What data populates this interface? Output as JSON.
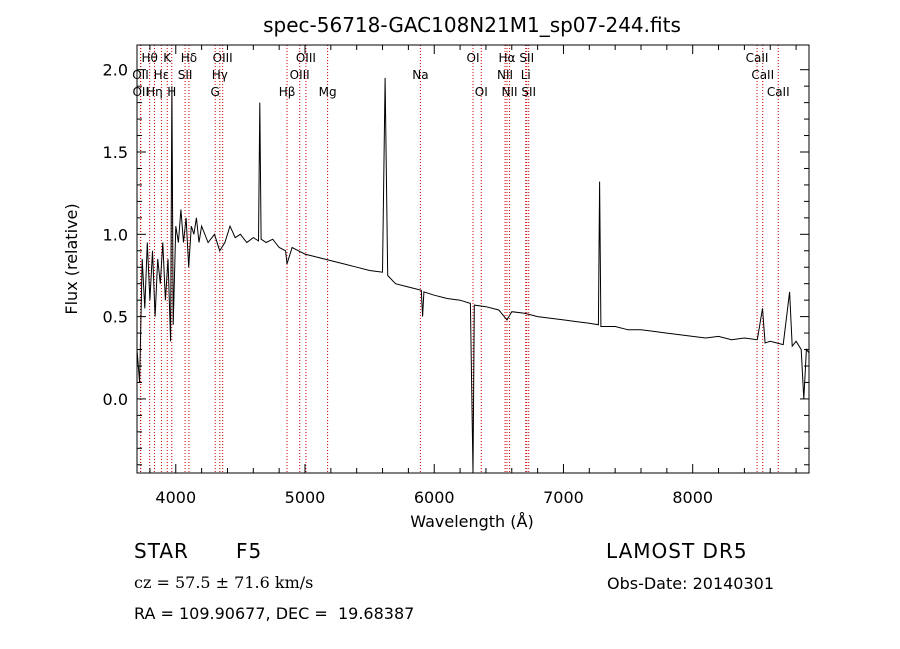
{
  "chart_data": {
    "type": "line",
    "title": "spec-56718-GAC108N21M1_sp07-244.fits",
    "xlabel": "Wavelength (Å)",
    "ylabel": "Flux (relative)",
    "xlim": [
      3700,
      8900
    ],
    "ylim": [
      -0.45,
      2.15
    ],
    "xticks": [
      4000,
      5000,
      6000,
      7000,
      8000
    ],
    "xtick_labels": [
      "4000",
      "5000",
      "6000",
      "7000",
      "8000"
    ],
    "yticks": [
      0.0,
      0.5,
      1.0,
      1.5,
      2.0
    ],
    "ytick_labels": [
      "0.0",
      "0.5",
      "1.0",
      "1.5",
      "2.0"
    ],
    "grid": false,
    "line_color": "#000000",
    "marker_color": "#cc0000",
    "spectrum_points": [
      [
        3700,
        0.3
      ],
      [
        3720,
        0.1
      ],
      [
        3740,
        0.85
      ],
      [
        3760,
        0.55
      ],
      [
        3780,
        0.95
      ],
      [
        3800,
        0.6
      ],
      [
        3820,
        0.9
      ],
      [
        3840,
        0.5
      ],
      [
        3860,
        0.85
      ],
      [
        3880,
        0.7
      ],
      [
        3900,
        0.95
      ],
      [
        3920,
        0.6
      ],
      [
        3940,
        0.85
      ],
      [
        3960,
        0.35
      ],
      [
        3970,
        1.9
      ],
      [
        3980,
        0.45
      ],
      [
        4000,
        1.05
      ],
      [
        4020,
        0.95
      ],
      [
        4040,
        1.15
      ],
      [
        4060,
        0.95
      ],
      [
        4080,
        1.1
      ],
      [
        4100,
        0.8
      ],
      [
        4120,
        1.05
      ],
      [
        4140,
        1.0
      ],
      [
        4160,
        1.1
      ],
      [
        4180,
        0.95
      ],
      [
        4200,
        1.05
      ],
      [
        4250,
        0.95
      ],
      [
        4300,
        1.0
      ],
      [
        4340,
        0.9
      ],
      [
        4380,
        0.95
      ],
      [
        4420,
        1.05
      ],
      [
        4460,
        0.98
      ],
      [
        4500,
        1.0
      ],
      [
        4550,
        0.95
      ],
      [
        4600,
        0.98
      ],
      [
        4640,
        0.96
      ],
      [
        4650,
        1.8
      ],
      [
        4660,
        0.97
      ],
      [
        4700,
        0.95
      ],
      [
        4750,
        0.97
      ],
      [
        4800,
        0.92
      ],
      [
        4850,
        0.9
      ],
      [
        4861,
        0.82
      ],
      [
        4900,
        0.92
      ],
      [
        4950,
        0.9
      ],
      [
        5000,
        0.88
      ],
      [
        5100,
        0.86
      ],
      [
        5200,
        0.84
      ],
      [
        5300,
        0.82
      ],
      [
        5400,
        0.8
      ],
      [
        5500,
        0.78
      ],
      [
        5600,
        0.77
      ],
      [
        5620,
        1.95
      ],
      [
        5640,
        0.75
      ],
      [
        5700,
        0.7
      ],
      [
        5800,
        0.68
      ],
      [
        5900,
        0.66
      ],
      [
        5910,
        0.5
      ],
      [
        5920,
        0.65
      ],
      [
        6000,
        0.63
      ],
      [
        6100,
        0.61
      ],
      [
        6200,
        0.6
      ],
      [
        6280,
        0.58
      ],
      [
        6300,
        -0.45
      ],
      [
        6310,
        0.57
      ],
      [
        6400,
        0.56
      ],
      [
        6500,
        0.54
      ],
      [
        6563,
        0.48
      ],
      [
        6600,
        0.53
      ],
      [
        6700,
        0.52
      ],
      [
        6800,
        0.5
      ],
      [
        6900,
        0.49
      ],
      [
        7000,
        0.48
      ],
      [
        7100,
        0.47
      ],
      [
        7200,
        0.46
      ],
      [
        7270,
        0.45
      ],
      [
        7280,
        1.32
      ],
      [
        7290,
        0.44
      ],
      [
        7400,
        0.44
      ],
      [
        7500,
        0.42
      ],
      [
        7600,
        0.42
      ],
      [
        7700,
        0.41
      ],
      [
        7800,
        0.4
      ],
      [
        7900,
        0.39
      ],
      [
        8000,
        0.38
      ],
      [
        8100,
        0.37
      ],
      [
        8200,
        0.38
      ],
      [
        8300,
        0.36
      ],
      [
        8400,
        0.37
      ],
      [
        8500,
        0.36
      ],
      [
        8540,
        0.55
      ],
      [
        8560,
        0.34
      ],
      [
        8600,
        0.35
      ],
      [
        8700,
        0.33
      ],
      [
        8750,
        0.65
      ],
      [
        8770,
        0.32
      ],
      [
        8800,
        0.35
      ],
      [
        8840,
        0.3
      ],
      [
        8860,
        0.0
      ],
      [
        8880,
        0.3
      ],
      [
        8900,
        0.28
      ]
    ],
    "line_markers": [
      {
        "label": "Hθ",
        "wavelength": 3798,
        "row": 0
      },
      {
        "label": "OII",
        "wavelength": 3727,
        "row": 1
      },
      {
        "label": "OII",
        "wavelength": 3729,
        "row": 2
      },
      {
        "label": "Hη",
        "wavelength": 3835,
        "row": 2
      },
      {
        "label": "Hε",
        "wavelength": 3889,
        "row": 1
      },
      {
        "label": "K",
        "wavelength": 3934,
        "row": 0
      },
      {
        "label": "H",
        "wavelength": 3969,
        "row": 2
      },
      {
        "label": "Hδ",
        "wavelength": 4102,
        "row": 0
      },
      {
        "label": "SII",
        "wavelength": 4072,
        "row": 1
      },
      {
        "label": "OIII",
        "wavelength": 4363,
        "row": 0
      },
      {
        "label": "Hγ",
        "wavelength": 4341,
        "row": 1
      },
      {
        "label": "G",
        "wavelength": 4305,
        "row": 2
      },
      {
        "label": "Hβ",
        "wavelength": 4861,
        "row": 2
      },
      {
        "label": "OIII",
        "wavelength": 5007,
        "row": 0
      },
      {
        "label": "OIII",
        "wavelength": 4959,
        "row": 1
      },
      {
        "label": "Mg",
        "wavelength": 5175,
        "row": 2
      },
      {
        "label": "Na",
        "wavelength": 5893,
        "row": 1
      },
      {
        "label": "OI",
        "wavelength": 6300,
        "row": 0
      },
      {
        "label": "OI",
        "wavelength": 6364,
        "row": 2
      },
      {
        "label": "Hα",
        "wavelength": 6563,
        "row": 0
      },
      {
        "label": "NII",
        "wavelength": 6548,
        "row": 1
      },
      {
        "label": "NII",
        "wavelength": 6583,
        "row": 2
      },
      {
        "label": "SII",
        "wavelength": 6716,
        "row": 0
      },
      {
        "label": "Li",
        "wavelength": 6708,
        "row": 1
      },
      {
        "label": "SII",
        "wavelength": 6731,
        "row": 2
      },
      {
        "label": "CaII",
        "wavelength": 8498,
        "row": 0
      },
      {
        "label": "CaII",
        "wavelength": 8542,
        "row": 1
      },
      {
        "label": "CaII",
        "wavelength": 8662,
        "row": 2
      }
    ]
  },
  "info": {
    "class": "STAR",
    "subclass": "F5",
    "survey": "LAMOST DR5",
    "cz": "cz = 57.5 ± 71.6 km/s",
    "obs_date": "Obs-Date: 20140301",
    "radec": "RA = 109.90677, DEC =  19.68387"
  }
}
